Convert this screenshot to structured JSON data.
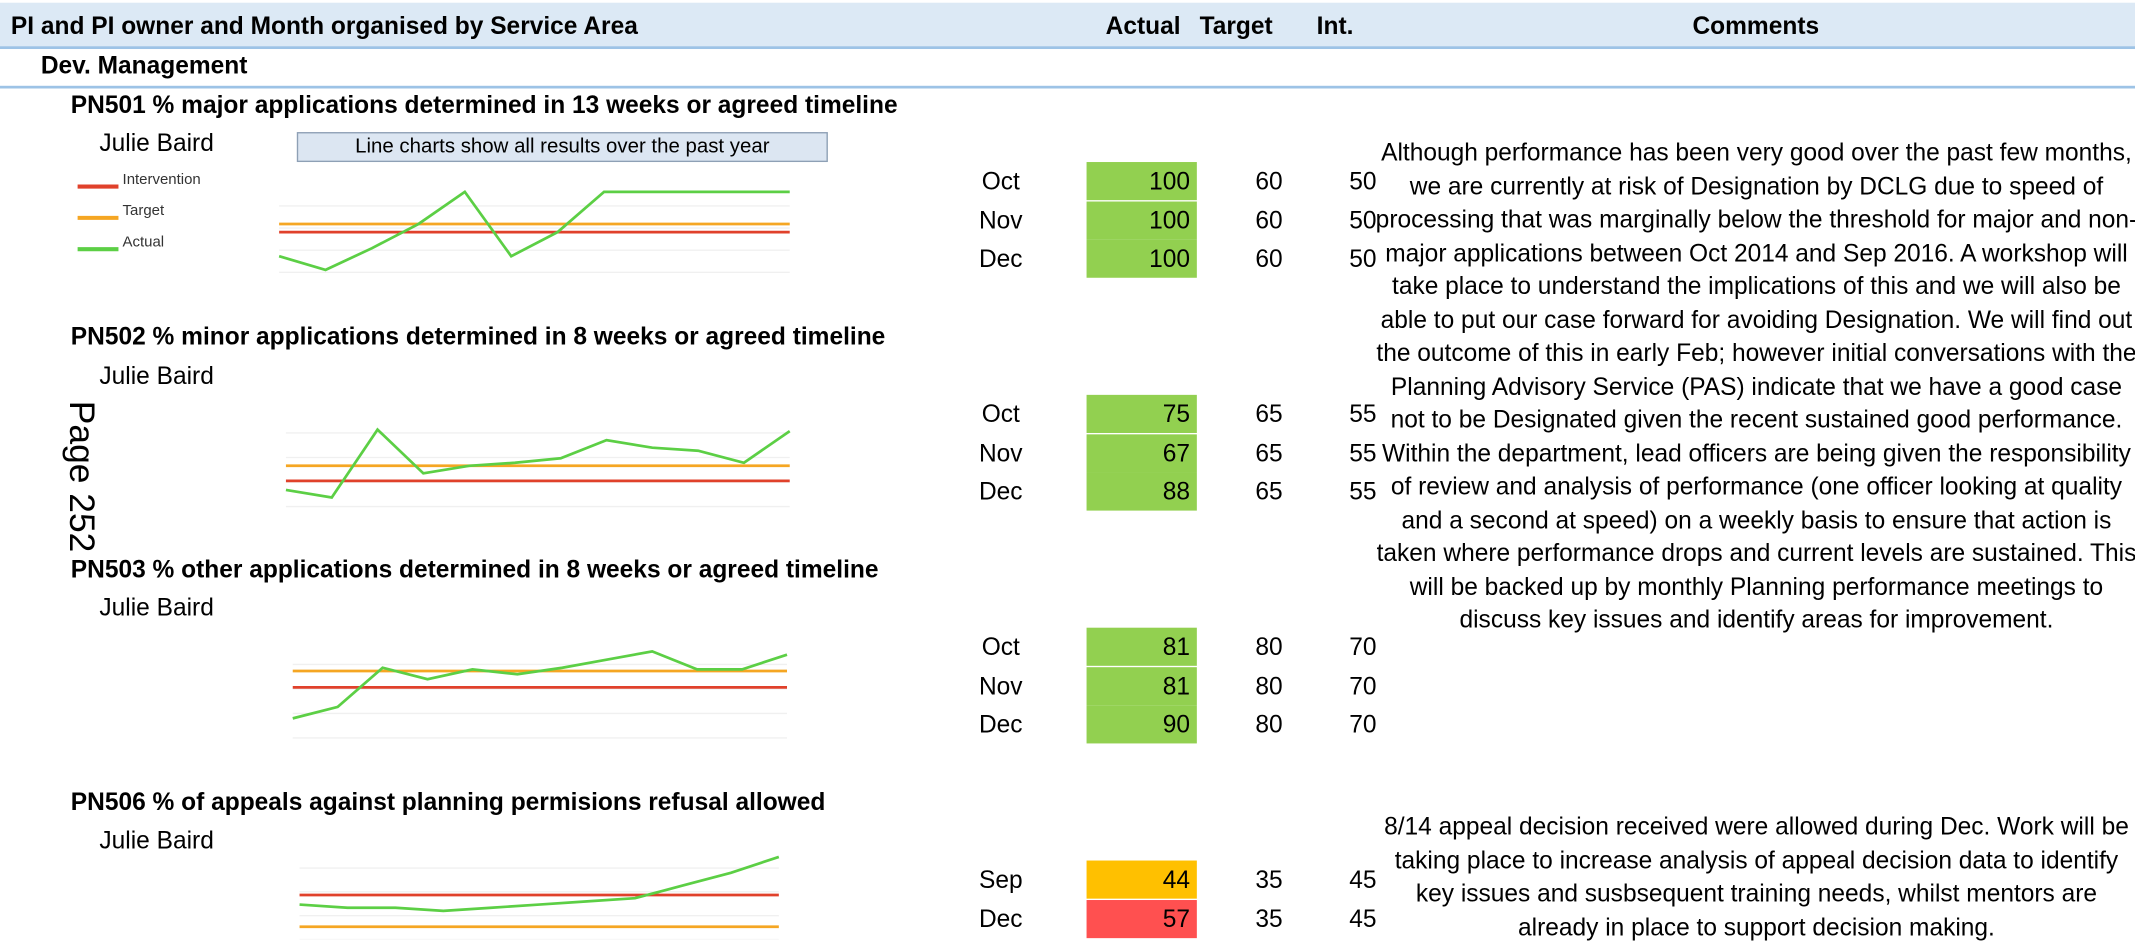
{
  "header": {
    "title": "PI and PI owner and Month organised by Service Area",
    "columns": [
      "Actual",
      "Target",
      "Int.",
      "Comments"
    ]
  },
  "section": "Dev. Management",
  "note": "Line charts show all results over the past year",
  "legend": [
    "Intervention",
    "Target",
    "Actual"
  ],
  "page_label": "Page 252",
  "pis": [
    {
      "title": "PN501 % major applications determined in 13 weeks or agreed timeline",
      "owner": "Julie Baird",
      "rows": [
        {
          "month": "Oct",
          "actual": 100,
          "target": 60,
          "int": 50,
          "color": "#92d050"
        },
        {
          "month": "Nov",
          "actual": 100,
          "target": 60,
          "int": 50,
          "color": "#92d050"
        },
        {
          "month": "Dec",
          "actual": 100,
          "target": 60,
          "int": 50,
          "color": "#92d050"
        }
      ],
      "chart": {
        "ylim": [
          0,
          110
        ],
        "series": [
          {
            "color": "#e0412b",
            "values": [
              50,
              50,
              50,
              50,
              50,
              50,
              50,
              50,
              50,
              50,
              50,
              50
            ]
          },
          {
            "color": "#f5a623",
            "values": [
              60,
              60,
              60,
              60,
              60,
              60,
              60,
              60,
              60,
              60,
              60,
              60
            ]
          },
          {
            "color": "#5ccf45",
            "values": [
              20,
              3,
              30,
              60,
              100,
              20,
              50,
              100,
              100,
              100,
              100,
              100
            ]
          }
        ]
      },
      "comments": [
        "Although performance has been very good over the past few months, we are currently at risk of Designation by DCLG due to speed of processing that was marginally below the threshold for major and non-major applications between Oct 2014 and Sep 2016. A workshop will take place to understand the implications of this and we will also be able to put our case forward for avoiding Designation. We will find out the outcome of this in early Feb; however initial conversations with the Planning Advisory Service (PAS) indicate that we have a good case not to be Designated given the recent sustained good performance.",
        "Within the department, lead officers are being given the responsibility of review and analysis of performance (one officer looking at quality and a second at speed) on a weekly basis to ensure that action is taken where performance drops and current levels are sustained. This will be backed up by monthly Planning performance meetings to discuss key issues and identify areas for improvement."
      ]
    },
    {
      "title": "PN502 % minor applications determined in 8 weeks or agreed timeline",
      "owner": "Julie Baird",
      "rows": [
        {
          "month": "Oct",
          "actual": 75,
          "target": 65,
          "int": 55,
          "color": "#92d050"
        },
        {
          "month": "Nov",
          "actual": 67,
          "target": 65,
          "int": 55,
          "color": "#92d050"
        },
        {
          "month": "Dec",
          "actual": 88,
          "target": 65,
          "int": 55,
          "color": "#92d050"
        }
      ],
      "chart": {
        "ylim": [
          38,
          103
        ],
        "series": [
          {
            "color": "#e0412b",
            "values": [
              55,
              55,
              55,
              55,
              55,
              55,
              55,
              55,
              55,
              55,
              55,
              55
            ]
          },
          {
            "color": "#f5a623",
            "values": [
              65,
              65,
              65,
              65,
              65,
              65,
              65,
              65,
              65,
              65,
              65,
              65
            ]
          },
          {
            "color": "#5ccf45",
            "values": [
              49,
              44,
              89,
              60,
              65,
              67,
              70,
              82,
              77,
              75,
              67,
              88
            ]
          }
        ]
      }
    },
    {
      "title": "PN503 % other applications determined in 8 weeks or agreed timeline",
      "owner": "Julie Baird",
      "rows": [
        {
          "month": "Oct",
          "actual": 81,
          "target": 80,
          "int": 70,
          "color": "#92d050"
        },
        {
          "month": "Nov",
          "actual": 81,
          "target": 80,
          "int": 70,
          "color": "#92d050"
        },
        {
          "month": "Dec",
          "actual": 90,
          "target": 80,
          "int": 70,
          "color": "#92d050"
        }
      ],
      "chart": {
        "ylim": [
          39,
          99
        ],
        "series": [
          {
            "color": "#e0412b",
            "values": [
              70,
              70,
              70,
              70,
              70,
              70,
              70,
              70,
              70,
              70,
              70,
              70
            ]
          },
          {
            "color": "#f5a623",
            "values": [
              80,
              80,
              80,
              80,
              80,
              80,
              80,
              80,
              80,
              80,
              80,
              80
            ]
          },
          {
            "color": "#5ccf45",
            "values": [
              51,
              58,
              82,
              75,
              81,
              78,
              82,
              87,
              92,
              81,
              81,
              90
            ]
          }
        ]
      }
    },
    {
      "title": "PN506 % of appeals against planning permisions refusal allowed",
      "owner": "Julie Baird",
      "rows": [
        {
          "month": "Sep",
          "actual": 44,
          "target": 35,
          "int": 45,
          "color": "#ffc000"
        },
        {
          "month": "Dec",
          "actual": 57,
          "target": 35,
          "int": 45,
          "color": "#ff5050"
        }
      ],
      "chart": {
        "ylim": [
          31,
          61
        ],
        "series": [
          {
            "color": "#e0412b",
            "values": [
              45,
              45,
              45,
              45,
              45,
              45,
              45,
              45,
              45,
              45,
              45
            ]
          },
          {
            "color": "#f5a623",
            "values": [
              35,
              35,
              35,
              35,
              35,
              35,
              35,
              35,
              35,
              35,
              35
            ]
          },
          {
            "color": "#5ccf45",
            "values": [
              42,
              41,
              41,
              40,
              41,
              42,
              43,
              44,
              48,
              52,
              57
            ]
          }
        ]
      },
      "comments": [
        "8/14 appeal decision received were allowed during Dec. Work will be taking place to increase analysis of appeal decision data to identify key issues and susbsequent training needs, whilst mentors are already in place to support decision making."
      ]
    }
  ]
}
